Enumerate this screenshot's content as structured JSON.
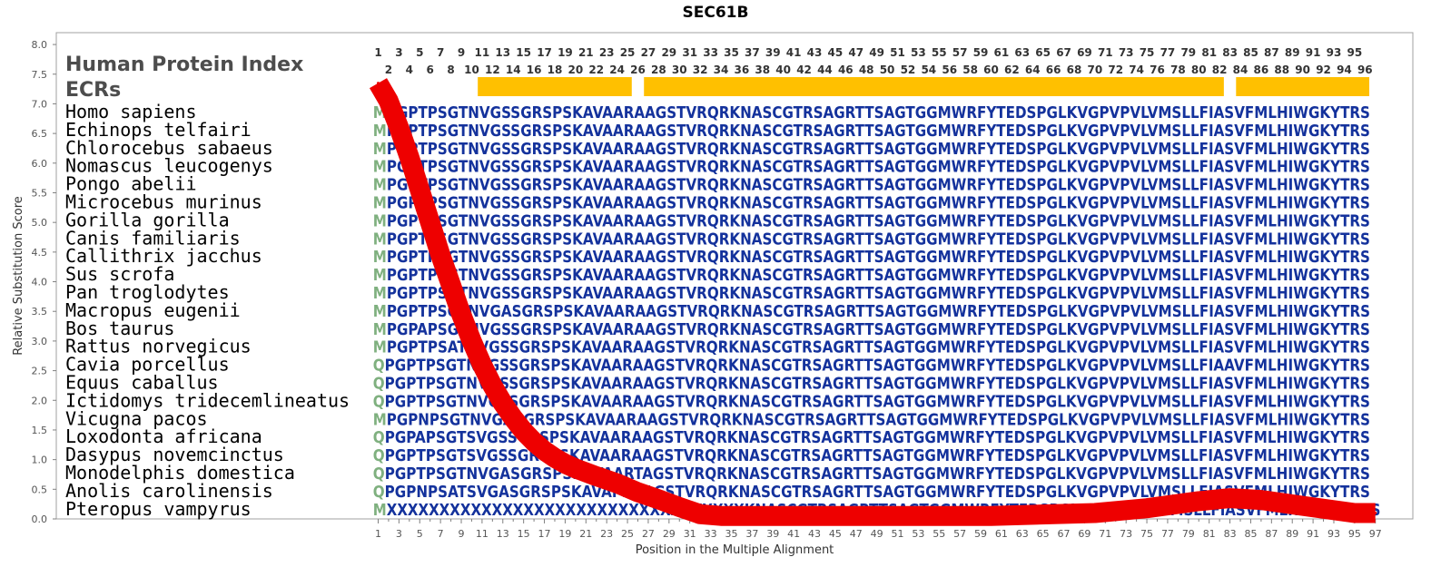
{
  "chart_data": {
    "type": "line",
    "title": "SEC61B",
    "xlabel": "Position in the Multiple Alignment",
    "ylabel": "Relative Substitution Score",
    "xlim": [
      0,
      97
    ],
    "ylim": [
      0,
      8.2
    ],
    "y_ticks": [
      "0.0",
      "0.5",
      "1.0",
      "1.5",
      "2.0",
      "2.5",
      "3.0",
      "3.5",
      "4.0",
      "4.5",
      "5.0",
      "5.5",
      "6.0",
      "6.5",
      "7.0",
      "7.5",
      "8.0"
    ],
    "x_ticks_bottom": [
      "1",
      "3",
      "5",
      "7",
      "9",
      "11",
      "13",
      "15",
      "17",
      "19",
      "21",
      "23",
      "25",
      "27",
      "29",
      "31",
      "33",
      "35",
      "37",
      "39",
      "41",
      "43",
      "45",
      "47",
      "49",
      "51",
      "53",
      "55",
      "57",
      "59",
      "61",
      "63",
      "65",
      "67",
      "69",
      "71",
      "73",
      "75",
      "77",
      "79",
      "81",
      "83",
      "85",
      "87",
      "89",
      "91",
      "93",
      "95",
      "97"
    ],
    "top_ticks_odd": [
      "1",
      "3",
      "5",
      "7",
      "9",
      "11",
      "13",
      "15",
      "17",
      "19",
      "21",
      "23",
      "25",
      "27",
      "29",
      "31",
      "33",
      "35",
      "37",
      "39",
      "41",
      "43",
      "45",
      "47",
      "49",
      "51",
      "53",
      "55",
      "57",
      "59",
      "61",
      "63",
      "65",
      "67",
      "69",
      "71",
      "73",
      "75",
      "77",
      "79",
      "81",
      "83",
      "85",
      "87",
      "89",
      "91",
      "93",
      "95"
    ],
    "top_ticks_even": [
      "2",
      "4",
      "6",
      "8",
      "10",
      "12",
      "14",
      "16",
      "18",
      "20",
      "22",
      "24",
      "26",
      "28",
      "30",
      "32",
      "34",
      "36",
      "38",
      "40",
      "42",
      "44",
      "46",
      "48",
      "50",
      "52",
      "54",
      "56",
      "58",
      "60",
      "62",
      "64",
      "66",
      "68",
      "70",
      "72",
      "74",
      "76",
      "78",
      "80",
      "82",
      "84",
      "86",
      "88",
      "90",
      "92",
      "94",
      "96"
    ],
    "panel_title": "Human Protein Index",
    "ecr_label": "ECRs",
    "ecr_color": "#FFC000",
    "ecr_segments": [
      [
        11,
        26
      ],
      [
        27,
        83
      ],
      [
        84,
        97
      ]
    ],
    "curve_color": "#EE0000",
    "series": [
      {
        "x": [
          1,
          2,
          3,
          4,
          5,
          6,
          7,
          8,
          9,
          10,
          11,
          12,
          13,
          14,
          15,
          16,
          17,
          18,
          19,
          20,
          22,
          24,
          26,
          28,
          30,
          32,
          34,
          40,
          50,
          60,
          70,
          75,
          80,
          83,
          86,
          90,
          95,
          97
        ],
        "y": [
          7.35,
          7.05,
          6.6,
          6.1,
          5.55,
          5.0,
          4.45,
          3.95,
          3.45,
          3.0,
          2.6,
          2.25,
          1.95,
          1.7,
          1.48,
          1.3,
          1.15,
          1.03,
          0.93,
          0.85,
          0.72,
          0.6,
          0.45,
          0.33,
          0.2,
          0.08,
          0.05,
          0.05,
          0.05,
          0.05,
          0.1,
          0.18,
          0.3,
          0.35,
          0.32,
          0.22,
          0.1,
          0.1
        ]
      }
    ],
    "alignment_colors": {
      "first_variable": "#7FB07F",
      "conserved": "#14329C",
      "partial": "#5B84A8"
    },
    "alignment": [
      {
        "species": "Homo sapiens",
        "seq": "MPGPTPSGTNVGSSGRSPSKAVAARAAGSTVRQRKNASCGTRSAGRTTSAGTGGMWRFYTEDSPGLKVGPVPVLVMSLLFIASVFMLHIWGKYTRS"
      },
      {
        "species": "Echinops telfairi",
        "seq": "MPGPTPSGTNVGSSGRSPSKAVAARAAGSTVRQRKNASCGTRSAGRTTSAGTGGMWRFYTEDSPGLKVGPVPVLVMSLLFIASVFMLHIWGKYTRS"
      },
      {
        "species": "Chlorocebus sabaeus",
        "seq": "MPGPTPSGTNVGSSGRSPSKAVAARAAGSTVRQRKNASCGTRSAGRTTSAGTGGMWRFYTEDSPGLKVGPVPVLVMSLLFIASVFMLHIWGKYTRS"
      },
      {
        "species": "Nomascus leucogenys",
        "seq": "MPGPTPSGTNVGSSGRSPSKAVAARAAGSTVRQRKNASCGTRSAGRTTSAGTGGMWRFYTEDSPGLKVGPVPVLVMSLLFIASVFMLHIWGKYTRS"
      },
      {
        "species": "Pongo abelii",
        "seq": "MPGPTPSGTNVGSSGRSPSKAVAARAAGSTVRQRKNASCGTRSAGRTTSAGTGGMWRFYTEDSPGLKVGPVPVLVMSLLFIASVFMLHIWGKYTRS"
      },
      {
        "species": "Microcebus murinus",
        "seq": "MPGPTPSGTNVGSSGRSPSKAVAARAAGSTVRQRKNASCGTRSAGRTTSAGTGGMWRFYTEDSPGLKVGPVPVLVMSLLFIASVFMLHIWGKYTRS"
      },
      {
        "species": "Gorilla gorilla",
        "seq": "MPGPTPSGTNVGSSGRSPSKAVAARAAGSTVRQRKNASCGTRSAGRTTSAGTGGMWRFYTEDSPGLKVGPVPVLVMSLLFIASVFMLHIWGKYTRS"
      },
      {
        "species": "Canis familiaris",
        "seq": "MPGPTPSGTNVGSSGRSPSKAVAARAAGSTVRQRKNASCGTRSAGRTTSAGTGGMWRFYTEDSPGLKVGPVPVLVMSLLFIASVFMLHIWGKYTRS"
      },
      {
        "species": "Callithrix jacchus",
        "seq": "MPGPTPSGTNVGSSGRSPSKAVAARAAGSTVRQRKNASCGTRSAGRTTSAGTGGMWRFYTEDSPGLKVGPVPVLVMSLLFIASVFMLHIWGKYTRS"
      },
      {
        "species": "Sus scrofa",
        "seq": "MPGPTPSGTNVGSSGRSPSKAVAARAAGSTVRQRKNASCGTRSAGRTTSAGTGGMWRFYTEDSPGLKVGPVPVLVMSLLFIASVFMLHIWGKYTRS"
      },
      {
        "species": "Pan troglodytes",
        "seq": "MPGPTPSGTNVGSSGRSPSKAVAARAAGSTVRQRKNASCGTRSAGRTTSAGTGGMWRFYTEDSPGLKVGPVPVLVMSLLFIASVFMLHIWGKYTRS"
      },
      {
        "species": "Macropus eugenii",
        "seq": "MPGPTPSGTNVGASGRSPSKAVAARAAGSTVRQRKNASCGTRSAGRTTSAGTGGMWRFYTEDSPGLKVGPVPVLVMSLLFIASVFMLHIWGKYTRS"
      },
      {
        "species": "Bos taurus",
        "seq": "MPGPAPSGTNVGSSGRSPSKAVAARAAGSTVRQRKNASCGTRSAGRTTSAGTGGMWRFYTEDSPGLKVGPVPVLVMSLLFIASVFMLHIWGKYTRS"
      },
      {
        "species": "Rattus norvegicus",
        "seq": "MPGPTPSATNVGSSGRSPSKAVAARAAGSTVRQRKNASCGTRSAGRTTSAGTGGMWRFYTEDSPGLKVGPVPVLVMSLLFIASVFMLHIWGKYTRS"
      },
      {
        "species": "Cavia porcellus",
        "seq": "QPGPTPSGTNVGSSGRSPSKAVAARAAGSTVRQRKNASCGTRSAGRTTSAGTGGMWRFYTEDSPGLKVGPVPVLVMSLLFIAAVFMLHIWGKYTRS"
      },
      {
        "species": "Equus caballus",
        "seq": "QPGPTPSGTNVGSSGRSPSKAVAARAAGSTVRQRKNASCGTRSAGRTTSAGTGGMWRFYTEDSPGLKVGPVPVLVMSLLFIASVFMLHIWGKYTRS"
      },
      {
        "species": "Ictidomys tridecemlineatus",
        "seq": "QPGPTPSGTNVGSSGRSPSKAVAARAAGSTVRQRKNASCGTRSAGRTTSAGTGGMWRFYTEDSPGLKVGPVPVLVMSLLFIASVFMLHIWGKYTRS"
      },
      {
        "species": "Vicugna pacos",
        "seq": "MPGPNPSGTNVGASGRSPSKAVAARAAGSTVRQRKNASCGTRSAGRTTSAGTGGMWRFYTEDSPGLKVGPVPVLVMSLLFIASVFMLHIWGKYTRS"
      },
      {
        "species": "Loxodonta africana",
        "seq": "QPGPAPSGTSVGSSGRSPSKAVAARAAGSTVRQRKNASCGTRSAGRTTSAGTGGMWRFYTEDSPGLKVGPVPVLVMSLLFIASVFMLHIWGKYTRS"
      },
      {
        "species": "Dasypus novemcinctus",
        "seq": "QPGPTPSGTSVGSSGRSPSKAVAARAAGSTVRQRKNASCGTRSAGRTTSAGTGGMWRFYTEDSPGLKVGPVPVLVMSLLFIASVFMLHIWGKYTRS"
      },
      {
        "species": "Monodelphis domestica",
        "seq": "QPGPTPSGTNVGASGRSPSKAVAARTAGSTVRQRKNASCGTRSAGRTTSAGTGGMWRFYTEDSPGLKVGPVPVLVMSLLFIASVFMLHIWGKYTRS"
      },
      {
        "species": "Anolis carolinensis",
        "seq": "QPGPNPSATSVGASGRSPSKAVAPRAAGSTVRQRKNASCGTRSAGRTTSAGTGGMWRFYTEDSPGLKVGPVPVLVMSLLFIASVFMLHIWGKYTRS"
      },
      {
        "species": "Pteropus vampyrus",
        "seq": "MXXXXXXXXXXXXXXXXXXXXXXXXXXXXXXXXXXKNASCGTRSAGRTTSAGTGGMWRFYTEDSPGLKVGPVPVLVMSLLFIASVFMLHIWGKYTRS"
      }
    ]
  }
}
